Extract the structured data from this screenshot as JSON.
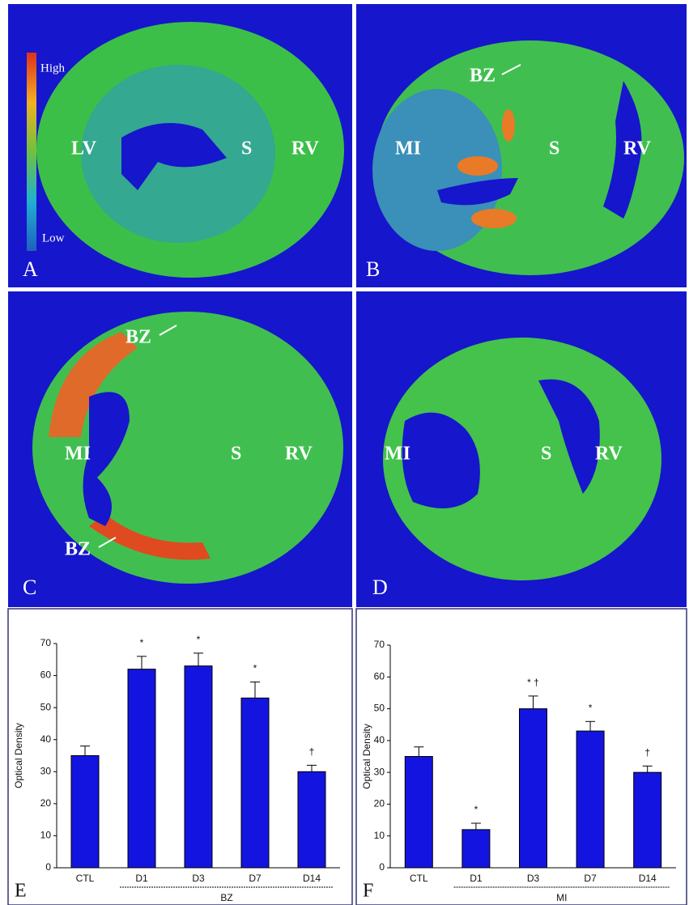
{
  "panels": [
    {
      "label": "A",
      "colorbar": {
        "high": "High",
        "low": "Low"
      },
      "annotations": [
        "LV",
        "S",
        "RV"
      ]
    },
    {
      "label": "B",
      "annotations": [
        "BZ",
        "MI",
        "S",
        "RV"
      ]
    },
    {
      "label": "C",
      "annotations": [
        "BZ",
        "MI",
        "S",
        "RV",
        "BZ"
      ]
    },
    {
      "label": "D",
      "annotations": [
        "MI",
        "S",
        "RV"
      ]
    }
  ],
  "chart_data": [
    {
      "type": "bar",
      "label": "E",
      "ylabel": "Optical Density",
      "categories": [
        "CTL",
        "D1",
        "D3",
        "D7",
        "D14"
      ],
      "values": [
        35,
        62,
        63,
        53,
        30
      ],
      "errors": [
        3,
        4,
        4,
        5,
        2
      ],
      "annotations": [
        null,
        "*",
        "*",
        "*",
        "†"
      ],
      "group_label": "BZ",
      "color": "#1414e0",
      "ylim": [
        0,
        70
      ],
      "yticks": [
        0,
        10,
        20,
        30,
        40,
        50,
        60,
        70
      ]
    },
    {
      "type": "bar",
      "label": "F",
      "ylabel": "Optical Density",
      "categories": [
        "CTL",
        "D1",
        "D3",
        "D7",
        "D14"
      ],
      "values": [
        35,
        12,
        50,
        43,
        30
      ],
      "errors": [
        3,
        2,
        4,
        3,
        2
      ],
      "annotations": [
        null,
        "*",
        "* †",
        "*",
        "†"
      ],
      "group_label": "MI",
      "color": "#1414e0",
      "ylim": [
        0,
        70
      ],
      "yticks": [
        0,
        10,
        20,
        30,
        40,
        50,
        60,
        70
      ]
    }
  ]
}
